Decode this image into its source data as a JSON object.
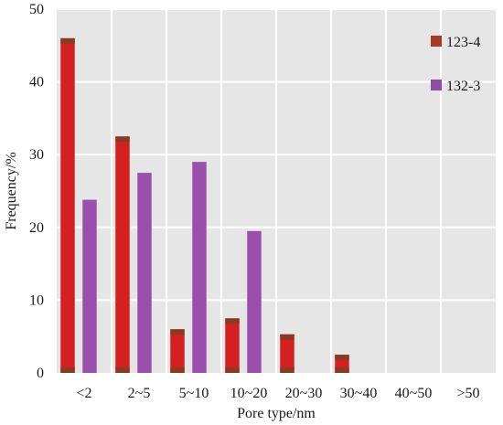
{
  "chart_data": {
    "type": "bar",
    "title": "",
    "xlabel": "Pore type/nm",
    "ylabel": "Frequency/%",
    "categories": [
      "<2",
      "2~5",
      "5~10",
      "10~20",
      "20~30",
      "30~40",
      "40~50",
      ">50"
    ],
    "ylim": [
      0,
      50
    ],
    "yticks": [
      0,
      10,
      20,
      30,
      40,
      50
    ],
    "grid": true,
    "legend_position": "top-right",
    "series": [
      {
        "name": "123-4",
        "color": "#d42020",
        "legend_color": "#a63a24",
        "values": [
          46.0,
          32.5,
          6.0,
          7.5,
          5.3,
          2.5,
          0,
          0
        ]
      },
      {
        "name": "132-3",
        "color": "#9b4fad",
        "legend_color": "#8e4ea6",
        "values": [
          23.8,
          27.5,
          29.0,
          19.5,
          0,
          0,
          0,
          0
        ]
      }
    ]
  },
  "colors": {
    "plot_background": "#e6e6e6",
    "grid": "#ffffff",
    "bar_cap": "#8b3a22"
  }
}
